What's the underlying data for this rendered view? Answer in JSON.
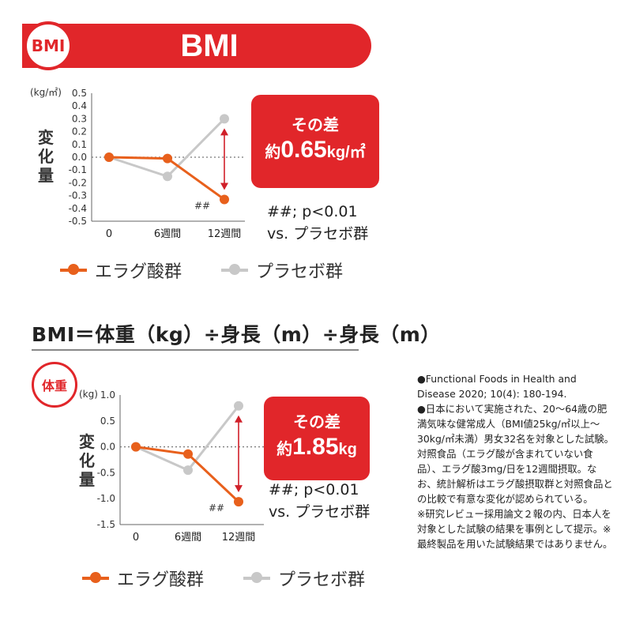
{
  "header": {
    "badge": "BMI",
    "title": "BMI"
  },
  "formula": "BMI＝体重（kg）÷身長（m）÷身長（m）",
  "weight_badge": "体重",
  "notes": "●Functional Foods in Health and Disease 2020; 10(4): 180-194.\n●日本において実施された、20～64歳の肥満気味な健常成人（BMI値25kg/㎡以上～30kg/㎡未満）男女32名を対象とした試験。対照食品（エラグ酸が含まれていない食品）、エラグ酸3mg/日を12週間摂取。なお、統計解析はエラグ酸摂取群と対照食品との比較で有意な変化が認められている。\n※研究レビュー採用論文２報の内、日本人を対象とした試験の結果を事例として提示。※最終製品を用いた試験結果ではありません。",
  "colors": {
    "accent": "#e1262a",
    "ellagic": "#e8601c",
    "placebo": "#c8c8c8"
  },
  "chart_data": [
    {
      "type": "line",
      "unit": "(kg/㎡)",
      "ylabel": "変化量",
      "categories": [
        "0",
        "6週間",
        "12週間"
      ],
      "ylim": [
        -0.5,
        0.5
      ],
      "yticks": [
        "0.5",
        "0.4",
        "0.3",
        "0.2",
        "0.1",
        "0.0",
        "-0.1",
        "-0.2",
        "-0.3",
        "-0.4",
        "-0.5"
      ],
      "series": [
        {
          "name": "エラグ酸群",
          "values": [
            0.0,
            -0.01,
            -0.33
          ]
        },
        {
          "name": "プラセボ群",
          "values": [
            0.0,
            -0.15,
            0.3
          ]
        }
      ],
      "annotation": "##",
      "callout": {
        "line1": "その差",
        "line2_prefix": "約",
        "line2_value": "0.65",
        "line2_unit": "kg/㎡"
      },
      "significance": [
        "##; p<0.01",
        "vs. プラセボ群"
      ],
      "legend": [
        "エラグ酸群",
        "プラセボ群"
      ]
    },
    {
      "type": "line",
      "unit": "(kg)",
      "ylabel": "変化量",
      "categories": [
        "0",
        "6週間",
        "12週間"
      ],
      "ylim": [
        -1.5,
        1.0
      ],
      "yticks": [
        "1.0",
        "0.5",
        "0.0",
        "-0.5",
        "-1.0",
        "-1.5"
      ],
      "series": [
        {
          "name": "エラグ酸群",
          "values": [
            0.0,
            -0.14,
            -1.06
          ]
        },
        {
          "name": "プラセボ群",
          "values": [
            0.0,
            -0.45,
            0.79
          ]
        }
      ],
      "annotation": "##",
      "callout": {
        "line1": "その差",
        "line2_prefix": "約",
        "line2_value": "1.85",
        "line2_unit": "kg"
      },
      "significance": [
        "##; p<0.01",
        "vs. プラセボ群"
      ],
      "legend": [
        "エラグ酸群",
        "プラセボ群"
      ]
    }
  ]
}
